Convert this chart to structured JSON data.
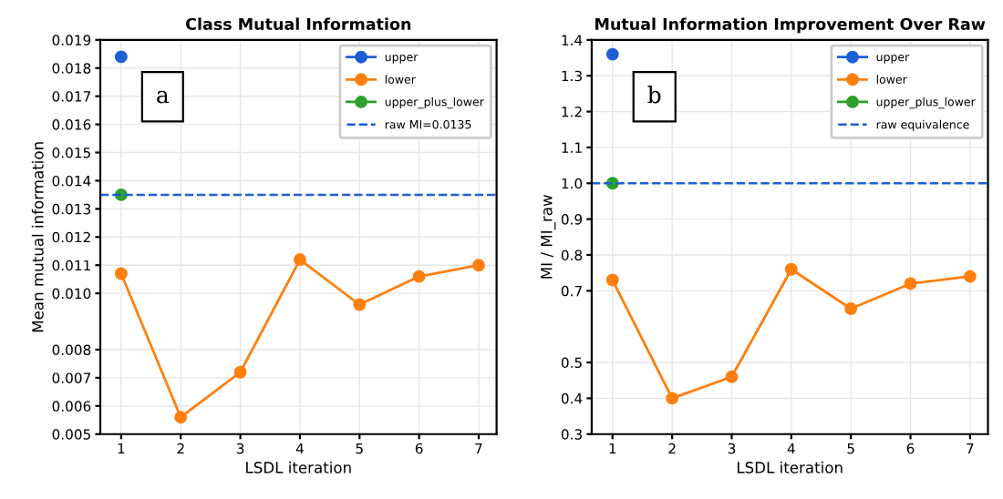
{
  "chart_data": [
    {
      "type": "line",
      "title": "Class Mutual Information",
      "xlabel": "LSDL iteration",
      "ylabel": "Mean mutual information",
      "x": [
        1,
        2,
        3,
        4,
        5,
        6,
        7
      ],
      "series": [
        {
          "name": "upper",
          "color": "#1f5fd6",
          "values": [
            0.0184,
            null,
            null,
            null,
            null,
            null,
            null
          ]
        },
        {
          "name": "lower",
          "color": "#ff7f0e",
          "values": [
            0.0107,
            0.0056,
            0.0072,
            0.0112,
            0.0096,
            0.0106,
            0.011
          ]
        },
        {
          "name": "upper_plus_lower",
          "color": "#2ca02c",
          "values": [
            0.0135,
            null,
            null,
            null,
            null,
            null,
            null
          ]
        }
      ],
      "ref_lines": [
        {
          "axis": "y",
          "value": 0.0135,
          "label": "raw MI=0.0135",
          "color": "#1f5fd6",
          "line_style": "dashed"
        }
      ],
      "annotations": [
        "a"
      ],
      "xlim": [
        0.65,
        7.3
      ],
      "xticks": [
        1,
        2,
        3,
        4,
        5,
        6,
        7
      ],
      "ylim": [
        0.005,
        0.019
      ],
      "yticks": [
        0.005,
        0.006,
        0.007,
        0.008,
        {
          "value": 0.01,
          "label": "0.010"
        },
        0.011,
        0.012,
        0.013,
        0.014,
        0.015,
        0.016,
        0.017,
        0.018,
        0.019
      ],
      "grid": true,
      "legend": "top right",
      "marker": "circle",
      "line_style": "solid"
    },
    {
      "type": "line",
      "title": "Mutual Information Improvement Over Raw",
      "xlabel": "LSDL iteration",
      "ylabel": "MI / MI_raw",
      "x": [
        1,
        2,
        3,
        4,
        5,
        6,
        7
      ],
      "series": [
        {
          "name": "upper",
          "color": "#1f5fd6",
          "values": [
            1.36,
            null,
            null,
            null,
            null,
            null,
            null
          ]
        },
        {
          "name": "lower",
          "color": "#ff7f0e",
          "values": [
            0.73,
            0.4,
            0.46,
            0.76,
            0.65,
            0.72,
            0.74
          ]
        },
        {
          "name": "upper_plus_lower",
          "color": "#2ca02c",
          "values": [
            1.0,
            null,
            null,
            null,
            null,
            null,
            null
          ]
        }
      ],
      "ref_lines": [
        {
          "axis": "y",
          "value": 1.0,
          "label": "raw equivalence",
          "color": "#1f5fd6",
          "line_style": "dashed"
        }
      ],
      "annotations": [
        "b"
      ],
      "xlim": [
        0.65,
        7.3
      ],
      "xticks": [
        1,
        2,
        3,
        4,
        5,
        6,
        7
      ],
      "ylim": [
        0.3,
        1.4
      ],
      "yticks": [
        0.3,
        0.4,
        0.5,
        0.7,
        0.8,
        0.9,
        {
          "value": 1.0,
          "label": "1.0"
        },
        1.1,
        1.2,
        1.3,
        1.4
      ],
      "grid": true,
      "legend": "top right",
      "marker": "circle",
      "line_style": "solid"
    }
  ]
}
